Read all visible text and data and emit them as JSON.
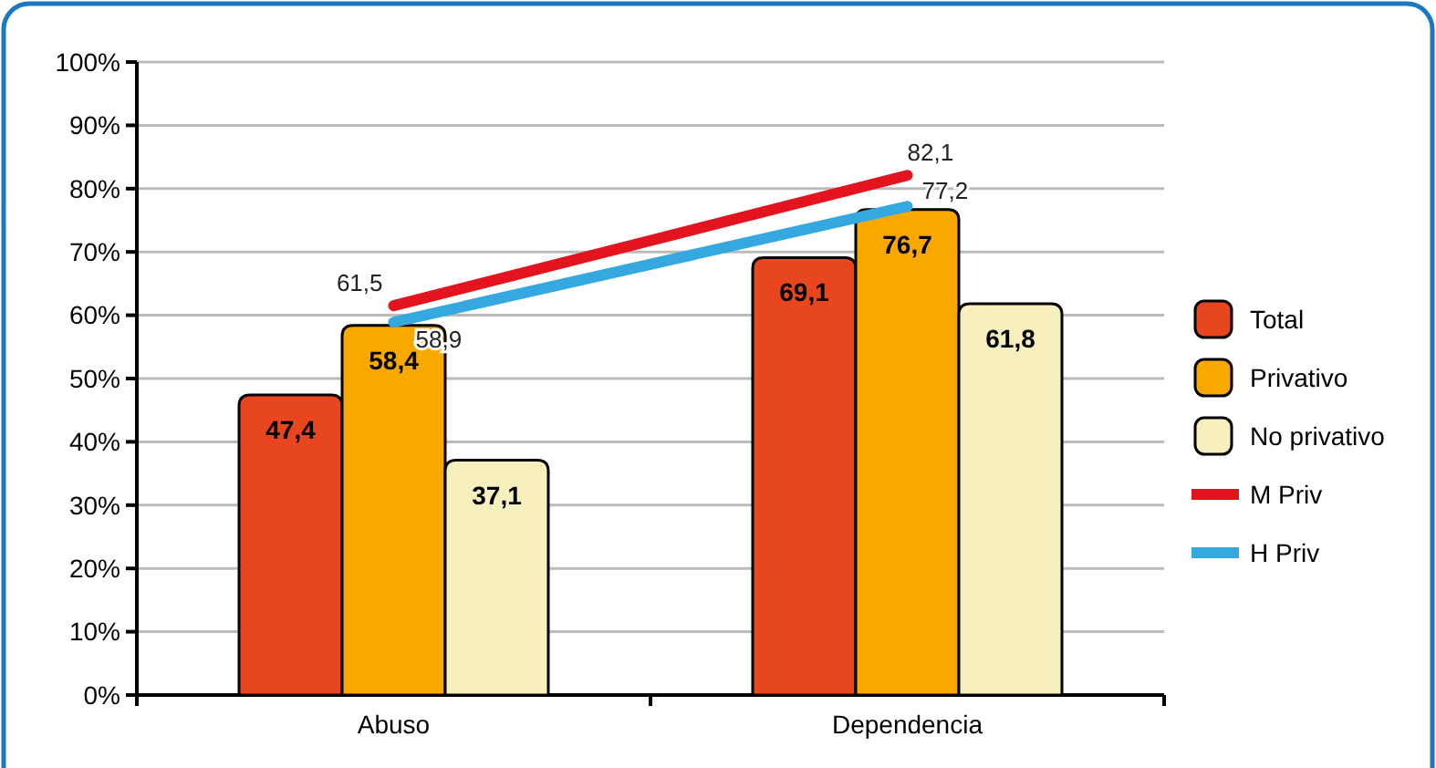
{
  "chart_data": {
    "type": "bar",
    "categories": [
      "Abuso",
      "Dependencia"
    ],
    "series": [
      {
        "name": "Total",
        "color": "#e8461e",
        "values": [
          47.4,
          69.1
        ],
        "value_labels": [
          "47,4",
          "69,1"
        ]
      },
      {
        "name": "Privativo",
        "color": "#f9a800",
        "values": [
          58.4,
          76.7
        ],
        "value_labels": [
          "58,4",
          "76,7"
        ]
      },
      {
        "name": "No privativo",
        "color": "#f7efbd",
        "values": [
          37.1,
          61.8
        ],
        "value_labels": [
          "37,1",
          "61,8"
        ]
      },
      {
        "name": "M Priv",
        "type": "line",
        "color": "#e3141e",
        "values": [
          61.5,
          82.1
        ],
        "value_labels": [
          "61,5",
          "82,1"
        ]
      },
      {
        "name": "H Priv",
        "type": "line",
        "color": "#35a8e0",
        "values": [
          58.9,
          77.2
        ],
        "value_labels": [
          "58,9",
          "77,2"
        ]
      }
    ],
    "ylim": [
      0,
      100
    ],
    "yticks": [
      {
        "value": 0,
        "label": "0%"
      },
      {
        "value": 10,
        "label": "10%"
      },
      {
        "value": 20,
        "label": "20%"
      },
      {
        "value": 30,
        "label": "30%"
      },
      {
        "value": 40,
        "label": "40%"
      },
      {
        "value": 50,
        "label": "50%"
      },
      {
        "value": 60,
        "label": "60%"
      },
      {
        "value": 70,
        "label": "70%"
      },
      {
        "value": 80,
        "label": "80%"
      },
      {
        "value": 90,
        "label": "90%"
      },
      {
        "value": 100,
        "label": "100%"
      }
    ],
    "grid": "y",
    "legend": "right"
  }
}
